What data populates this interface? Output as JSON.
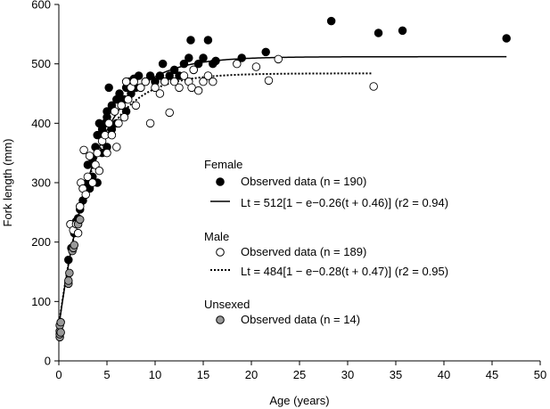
{
  "chart_data": {
    "type": "scatter",
    "xlabel": "Age (years)",
    "ylabel": "Fork length (mm)",
    "xlim": [
      0,
      50
    ],
    "ylim": [
      0,
      600
    ],
    "xticks": [
      0,
      5,
      10,
      15,
      20,
      25,
      30,
      35,
      40,
      45,
      50
    ],
    "yticks": [
      0,
      100,
      200,
      300,
      400,
      500,
      600
    ],
    "grid": false,
    "legend_position": "center-right",
    "legend": {
      "female_heading": "Female",
      "female_obs": "Observed data (n = 190)",
      "female_model": "Lt = 512[1 − e−0.26(t + 0.46)] (r2 = 0.94)",
      "male_heading": "Male",
      "male_obs": "Observed data (n = 189)",
      "male_model": "Lt = 484[1 − e−0.28(t + 0.47)] (r2 = 0.95)",
      "unsexed_heading": "Unsexed",
      "unsexed_obs": "Observed data (n = 14)"
    },
    "series": [
      {
        "name": "Female",
        "marker": "filled-circle",
        "color": "#000000",
        "points": [
          [
            1.0,
            170
          ],
          [
            1.3,
            190
          ],
          [
            1.6,
            215
          ],
          [
            1.8,
            235
          ],
          [
            2.0,
            240
          ],
          [
            2.2,
            255
          ],
          [
            2.5,
            270
          ],
          [
            2.7,
            290
          ],
          [
            3.0,
            300
          ],
          [
            3.0,
            330
          ],
          [
            3.2,
            290
          ],
          [
            3.5,
            310
          ],
          [
            3.5,
            340
          ],
          [
            3.8,
            360
          ],
          [
            4.0,
            300
          ],
          [
            4.0,
            380
          ],
          [
            4.2,
            400
          ],
          [
            4.5,
            350
          ],
          [
            4.5,
            390
          ],
          [
            4.8,
            400
          ],
          [
            5.0,
            360
          ],
          [
            5.0,
            410
          ],
          [
            5.0,
            420
          ],
          [
            5.2,
            460
          ],
          [
            5.5,
            390
          ],
          [
            5.5,
            430
          ],
          [
            5.8,
            420
          ],
          [
            6.0,
            400
          ],
          [
            6.0,
            440
          ],
          [
            6.3,
            450
          ],
          [
            6.5,
            430
          ],
          [
            6.8,
            440
          ],
          [
            7.0,
            420
          ],
          [
            7.0,
            460
          ],
          [
            7.3,
            470
          ],
          [
            7.5,
            450
          ],
          [
            7.8,
            475
          ],
          [
            8.0,
            460
          ],
          [
            8.3,
            480
          ],
          [
            8.5,
            460
          ],
          [
            9.0,
            470
          ],
          [
            9.5,
            480
          ],
          [
            10.0,
            470
          ],
          [
            10.5,
            480
          ],
          [
            10.8,
            500
          ],
          [
            11.0,
            470
          ],
          [
            11.5,
            480
          ],
          [
            12.0,
            490
          ],
          [
            12.5,
            480
          ],
          [
            13.0,
            500
          ],
          [
            13.5,
            510
          ],
          [
            13.7,
            540
          ],
          [
            14.0,
            490
          ],
          [
            14.5,
            500
          ],
          [
            15.0,
            510
          ],
          [
            15.5,
            540
          ],
          [
            16.0,
            500
          ],
          [
            16.3,
            505
          ],
          [
            19.0,
            510
          ],
          [
            21.5,
            520
          ],
          [
            28.3,
            572
          ],
          [
            33.2,
            552
          ],
          [
            35.7,
            556
          ],
          [
            46.5,
            543
          ]
        ]
      },
      {
        "name": "Male",
        "marker": "open-circle",
        "color": "#000000",
        "points": [
          [
            1.2,
            230
          ],
          [
            1.5,
            220
          ],
          [
            1.8,
            230
          ],
          [
            2.0,
            215
          ],
          [
            2.2,
            260
          ],
          [
            2.3,
            300
          ],
          [
            2.5,
            290
          ],
          [
            2.6,
            355
          ],
          [
            2.8,
            280
          ],
          [
            3.0,
            310
          ],
          [
            3.2,
            345
          ],
          [
            3.5,
            300
          ],
          [
            3.8,
            330
          ],
          [
            4.0,
            350
          ],
          [
            4.2,
            320
          ],
          [
            4.5,
            370
          ],
          [
            4.8,
            380
          ],
          [
            5.0,
            350
          ],
          [
            5.2,
            400
          ],
          [
            5.5,
            380
          ],
          [
            5.8,
            420
          ],
          [
            6.0,
            360
          ],
          [
            6.2,
            400
          ],
          [
            6.5,
            430
          ],
          [
            6.8,
            410
          ],
          [
            7.0,
            470
          ],
          [
            7.2,
            440
          ],
          [
            7.5,
            460
          ],
          [
            7.8,
            470
          ],
          [
            8.0,
            430
          ],
          [
            8.5,
            460
          ],
          [
            9.0,
            470
          ],
          [
            9.5,
            400
          ],
          [
            10.0,
            460
          ],
          [
            10.5,
            450
          ],
          [
            11.0,
            470
          ],
          [
            11.5,
            418
          ],
          [
            12.0,
            470
          ],
          [
            12.5,
            460
          ],
          [
            13.0,
            480
          ],
          [
            13.5,
            470
          ],
          [
            13.8,
            460
          ],
          [
            14.0,
            490
          ],
          [
            14.5,
            455
          ],
          [
            15.0,
            470
          ],
          [
            15.5,
            480
          ],
          [
            16.0,
            470
          ],
          [
            18.5,
            500
          ],
          [
            20.5,
            495
          ],
          [
            21.8,
            472
          ],
          [
            22.8,
            508
          ],
          [
            32.7,
            462
          ]
        ]
      },
      {
        "name": "Unsexed",
        "marker": "grey-circle",
        "color": "#999999",
        "points": [
          [
            0.1,
            40
          ],
          [
            0.1,
            45
          ],
          [
            0.1,
            50
          ],
          [
            0.1,
            60
          ],
          [
            0.2,
            65
          ],
          [
            0.2,
            48
          ],
          [
            1.0,
            130
          ],
          [
            1.0,
            135
          ],
          [
            1.1,
            148
          ],
          [
            1.4,
            185
          ],
          [
            1.5,
            190
          ],
          [
            1.6,
            195
          ],
          [
            2.0,
            230
          ],
          [
            2.2,
            238
          ]
        ]
      }
    ],
    "models": [
      {
        "name": "Female",
        "Linf": 512,
        "k": 0.26,
        "t0": -0.46,
        "r2": 0.94,
        "line": "solid",
        "t_range": [
          0,
          46.5
        ]
      },
      {
        "name": "Male",
        "Linf": 484,
        "k": 0.28,
        "t0": -0.47,
        "r2": 0.95,
        "line": "dotted",
        "t_range": [
          0,
          32.5
        ]
      }
    ]
  }
}
